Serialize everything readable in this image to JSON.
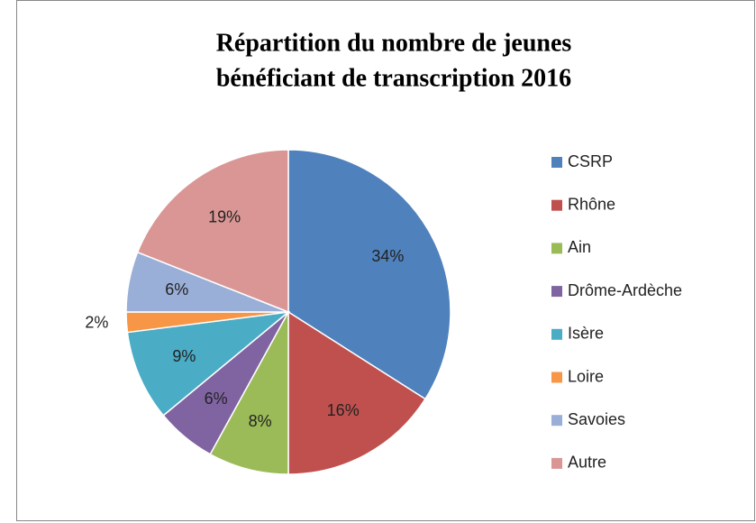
{
  "chart_data": {
    "type": "pie",
    "title": [
      "Répartition du nombre de jeunes",
      "bénéficiant de transcription 2016"
    ],
    "categories": [
      "CSRP",
      "Rhône",
      "Ain",
      "Drôme-Ardèche",
      "Isère",
      "Loire",
      "Savoies",
      "Autre"
    ],
    "values": [
      34,
      16,
      8,
      6,
      9,
      2,
      6,
      19
    ],
    "value_labels": [
      "34%",
      "16%",
      "8%",
      "6%",
      "9%",
      "2%",
      "6%",
      "19%"
    ],
    "colors": [
      "#4f81bd",
      "#c0504d",
      "#9bbb59",
      "#8064a2",
      "#4bacc6",
      "#f79646",
      "#9aafd8",
      "#d99694"
    ],
    "legend": "right"
  }
}
